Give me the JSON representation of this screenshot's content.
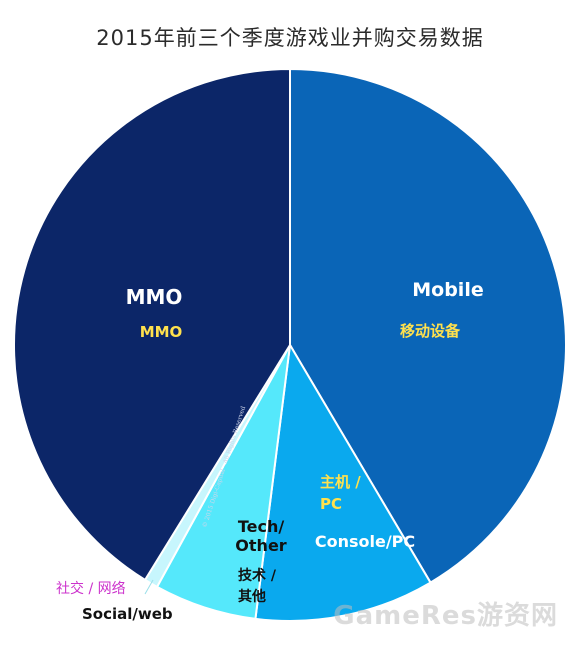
{
  "title": "2015年前三个季度游戏业并购交易数据",
  "watermark": "GameRes游资网",
  "copyright": "© 2015 Digi-Capital - All Rights Reserved",
  "chart_data": {
    "type": "pie",
    "title": "2015年前三个季度游戏业并购交易数据",
    "unit": "percent",
    "slices": [
      {
        "key": "mobile",
        "label": "Mobile",
        "label_zh": "移动设备",
        "value": 41.5,
        "color": "#0a65b7"
      },
      {
        "key": "console_pc",
        "label": "Console/PC",
        "label_zh": "主机 /\nPC",
        "value": 10.5,
        "color": "#0aa9ee"
      },
      {
        "key": "tech_other",
        "label": "Tech/\nOther",
        "label_zh": "技术 /\n其他",
        "value": 6.0,
        "color": "#55e8fb"
      },
      {
        "key": "social_web",
        "label": "Social/web",
        "label_zh": "社交 / 网络",
        "value": 0.8,
        "color": "#c7f6fd"
      },
      {
        "key": "mmo",
        "label": "MMO",
        "label_zh": "MMO",
        "value": 41.2,
        "color": "#0c2668"
      }
    ]
  }
}
